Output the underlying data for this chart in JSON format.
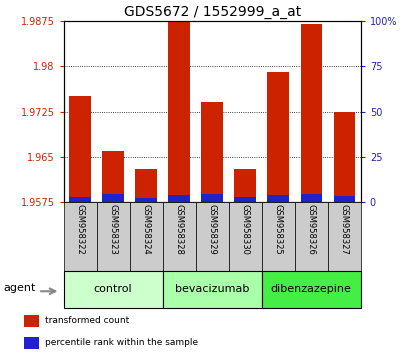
{
  "title": "GDS5672 / 1552999_a_at",
  "samples": [
    "GSM958322",
    "GSM958323",
    "GSM958324",
    "GSM958328",
    "GSM958329",
    "GSM958330",
    "GSM958325",
    "GSM958326",
    "GSM958327"
  ],
  "transformed_count": [
    1.975,
    1.966,
    1.963,
    1.9875,
    1.974,
    1.963,
    1.979,
    1.987,
    1.9725
  ],
  "percentile_rank": [
    2.5,
    4.5,
    2.0,
    4.0,
    4.5,
    2.5,
    4.0,
    4.5,
    3.0
  ],
  "base_value": 1.9575,
  "percentile_scale_max": 100,
  "ymin": 1.9575,
  "ymax": 1.9875,
  "yticks": [
    1.9575,
    1.965,
    1.9725,
    1.98,
    1.9875
  ],
  "right_yticks": [
    0,
    25,
    50,
    75,
    100
  ],
  "groups": [
    {
      "label": "control",
      "indices": [
        0,
        1,
        2
      ],
      "color": "#ccffcc"
    },
    {
      "label": "bevacizumab",
      "indices": [
        3,
        4,
        5
      ],
      "color": "#aaffaa"
    },
    {
      "label": "dibenzazepine",
      "indices": [
        6,
        7,
        8
      ],
      "color": "#44ee44"
    }
  ],
  "bar_color": "#cc2200",
  "percentile_color": "#2222cc",
  "bar_width": 0.65,
  "agent_label": "agent",
  "legend_items": [
    {
      "label": "transformed count",
      "color": "#cc2200"
    },
    {
      "label": "percentile rank within the sample",
      "color": "#2222cc"
    }
  ],
  "title_fontsize": 10,
  "tick_fontsize": 7,
  "label_fontsize": 7,
  "sample_fontsize": 6,
  "group_fontsize": 8
}
